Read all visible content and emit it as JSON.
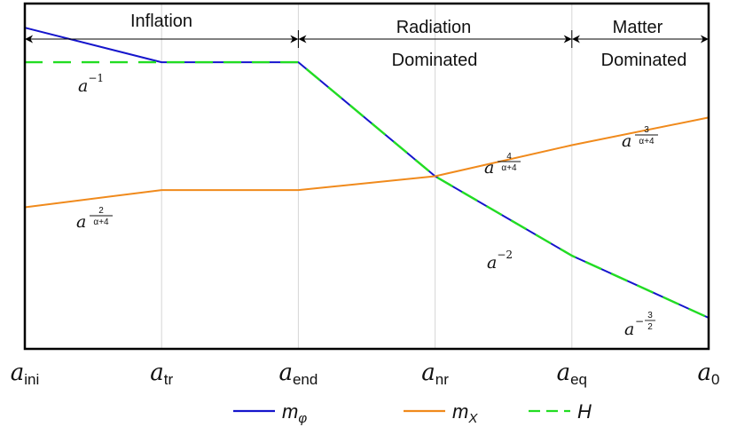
{
  "chart_data": {
    "type": "line",
    "x": [
      "a_ini",
      "a_tr",
      "a_end",
      "a_nr",
      "a_eq",
      "a_0"
    ],
    "x_ticks": [
      {
        "base": "a",
        "sub": "ini"
      },
      {
        "base": "a",
        "sub": "tr"
      },
      {
        "base": "a",
        "sub": "end"
      },
      {
        "base": "a",
        "sub": "nr"
      },
      {
        "base": "a",
        "sub": "eq"
      },
      {
        "base": "a",
        "sub": "0"
      }
    ],
    "ylim": [
      0,
      1
    ],
    "grid": "vertical",
    "legend_position": "bottom",
    "series": [
      {
        "name": "m_φ",
        "legend_base": "m",
        "legend_sub": "φ",
        "color": "#1515cc",
        "style": "solid",
        "values": [
          0.93,
          0.83,
          0.83,
          0.5,
          0.27,
          0.09
        ]
      },
      {
        "name": "m_X",
        "legend_base": "m",
        "legend_sub": "X",
        "color": "#f08a1c",
        "style": "solid",
        "values": [
          0.41,
          0.46,
          0.46,
          0.5,
          0.59,
          0.67
        ]
      },
      {
        "name": "H",
        "legend_base": "H",
        "legend_sub": "",
        "color": "#22dd22",
        "style": "dashed",
        "values": [
          0.83,
          0.83,
          0.83,
          0.5,
          0.27,
          0.09
        ]
      }
    ],
    "eras": [
      {
        "label": "Inflation",
        "line2": "",
        "from": 0,
        "to": 2
      },
      {
        "label": "Radiation",
        "line2": "Dominated",
        "from": 2,
        "to": 4
      },
      {
        "label": "Matter",
        "line2": "Dominated",
        "from": 4,
        "to": 5
      }
    ],
    "annotations": [
      {
        "base": "a",
        "exp": "−1",
        "num": "",
        "den": ""
      },
      {
        "base": "a",
        "exp": "",
        "num": "2",
        "den": "α+4"
      },
      {
        "base": "a",
        "exp": "",
        "num": "4",
        "den": "α+4"
      },
      {
        "base": "a",
        "exp": "",
        "num": "3",
        "den": "α+4"
      },
      {
        "base": "a",
        "exp": "−2",
        "num": "",
        "den": ""
      },
      {
        "base": "a",
        "exp": "−",
        "num": "3",
        "den": "2"
      }
    ]
  }
}
